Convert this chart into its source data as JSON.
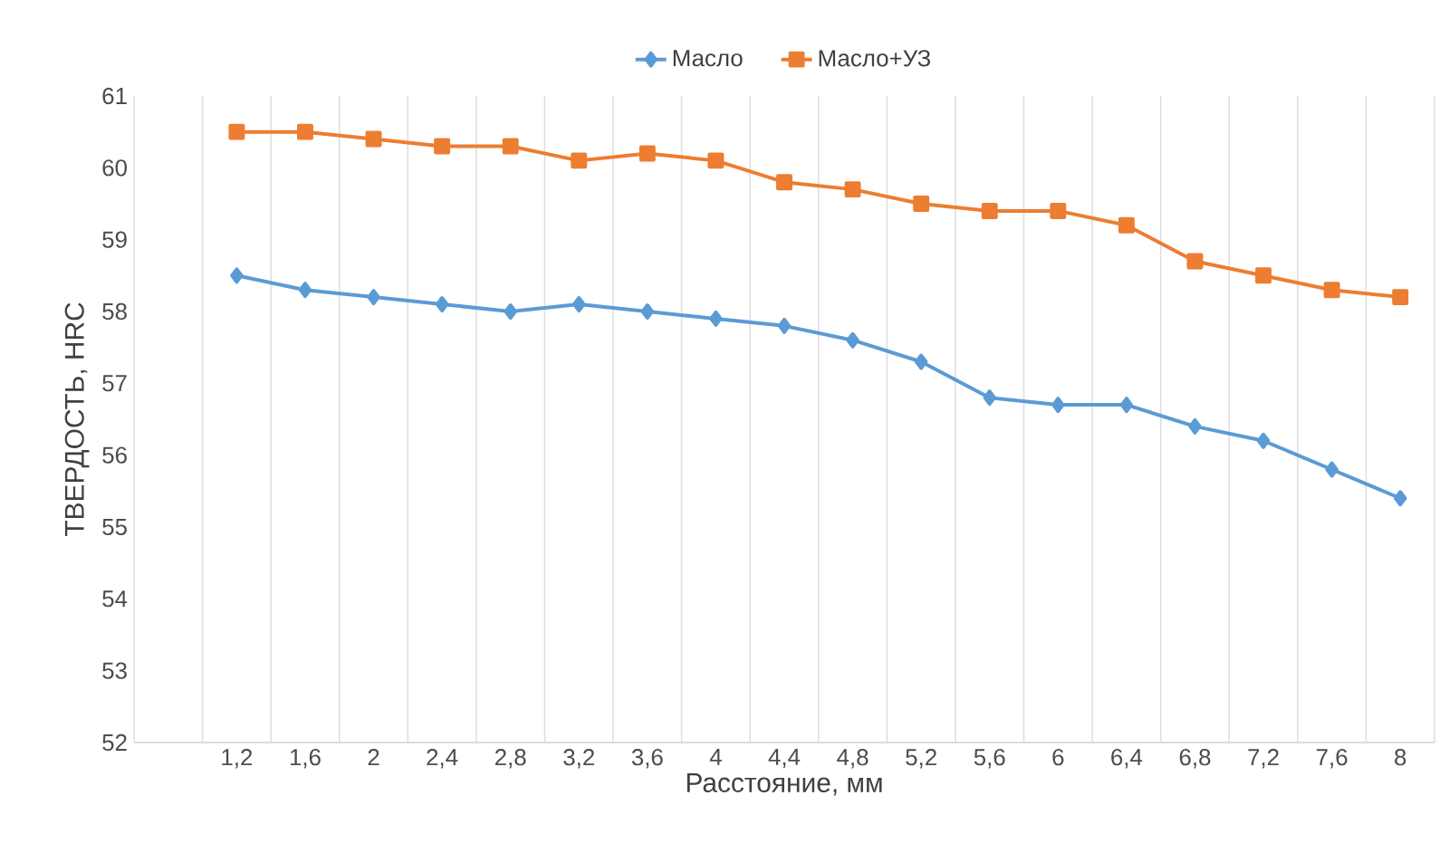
{
  "chart_data": {
    "type": "line",
    "xlabel": "Расстояние, мм",
    "ylabel": "ТВЕРДОСТЬ, HRC",
    "categories": [
      null,
      "1,2",
      "1,6",
      "2",
      "2,4",
      "2,8",
      "3,2",
      "3,6",
      "4",
      "4,4",
      "4,8",
      "5,2",
      "5,6",
      "6",
      "6,4",
      "6,8",
      "7,2",
      "7,6",
      "8"
    ],
    "series": [
      {
        "name": "Масло",
        "color": "#5b9bd5",
        "marker": "diamond",
        "values": [
          null,
          58.5,
          58.3,
          58.2,
          58.1,
          58.0,
          58.1,
          58.0,
          57.9,
          57.8,
          57.6,
          57.3,
          56.8,
          56.7,
          56.7,
          56.4,
          56.2,
          55.8,
          55.4
        ]
      },
      {
        "name": "Масло+УЗ",
        "color": "#ed7d31",
        "marker": "square",
        "values": [
          null,
          60.5,
          60.5,
          60.4,
          60.3,
          60.3,
          60.1,
          60.2,
          60.1,
          59.8,
          59.7,
          59.5,
          59.4,
          59.4,
          59.2,
          58.7,
          58.5,
          58.3,
          58.2
        ]
      }
    ],
    "ylim": [
      52,
      61
    ],
    "yticks": [
      52,
      53,
      54,
      55,
      56,
      57,
      58,
      59,
      60,
      61
    ],
    "grid": "x",
    "legend": "top",
    "line_style": "solid"
  }
}
